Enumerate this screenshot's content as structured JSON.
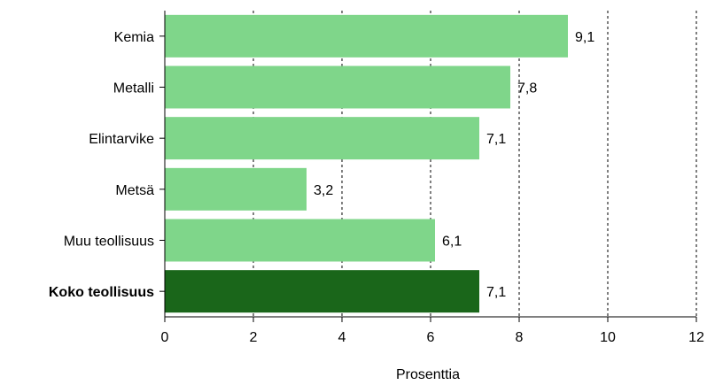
{
  "chart_data": {
    "type": "bar",
    "orientation": "horizontal",
    "categories": [
      "Kemia",
      "Metalli",
      "Elintarvike",
      "Metsä",
      "Muu teollisuus",
      "Koko teollisuus"
    ],
    "values": [
      9.1,
      7.8,
      7.1,
      3.2,
      6.1,
      7.1
    ],
    "value_labels": [
      "9,1",
      "7,8",
      "7,1",
      "3,2",
      "6,1",
      "7,1"
    ],
    "highlighted_category": "Koko teollisuus",
    "xlabel": "Prosenttia",
    "xlim": [
      0,
      12
    ],
    "xticks": [
      0,
      2,
      4,
      6,
      8,
      10,
      12
    ],
    "xtick_labels": [
      "0",
      "2",
      "4",
      "6",
      "8",
      "10",
      "12"
    ],
    "grid": "vertical dashed",
    "colors": {
      "bar": "#7fd68a",
      "highlight": "#1a661a"
    }
  }
}
